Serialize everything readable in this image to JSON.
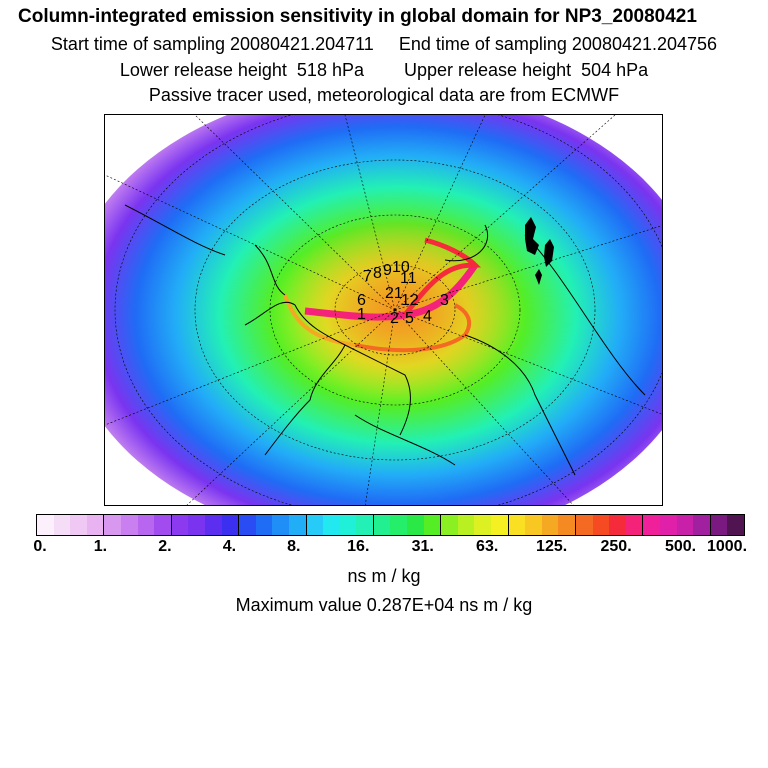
{
  "header": {
    "title": "Column-integrated emission sensitivity in global domain for NP3_20080421",
    "start_label": "Start time of sampling 20080421.204711",
    "end_label": "End time of sampling 20080421.204756",
    "lower_label": "Lower release height  518 hPa",
    "upper_label": "Upper release height  504 hPa",
    "tracer_note": "Passive tracer used, meteorological data are from ECMWF"
  },
  "colorbar": {
    "colors": [
      "#fbf0fb",
      "#f5dcf7",
      "#efc8f3",
      "#e8b3f0",
      "#d998ef",
      "#c97ff0",
      "#b865ef",
      "#a24cef",
      "#8b3af0",
      "#7a34f0",
      "#5c2ff0",
      "#3b2ff0",
      "#2a4cf5",
      "#1f6cf5",
      "#1f8ef7",
      "#22adf7",
      "#26cbf7",
      "#22e8f0",
      "#20f0d8",
      "#22f0b5",
      "#22f090",
      "#24ee6a",
      "#2ae845",
      "#55ee25",
      "#8af022",
      "#b8f022",
      "#dcf022",
      "#f5f022",
      "#fae022",
      "#f8c722",
      "#f5a822",
      "#f58922",
      "#f56a22",
      "#f54a22",
      "#f52a3a",
      "#f5227a",
      "#f0209a",
      "#e020a8",
      "#c820a8",
      "#a020a0",
      "#7a1a80",
      "#501550"
    ],
    "tick_labels": [
      "0.",
      "1.",
      "2.",
      "4.",
      "8.",
      "16.",
      "31.",
      "63.",
      "125.",
      "250.",
      "500.",
      "1000."
    ],
    "units": "ns m / kg",
    "max_value_label": "Maximum value  0.287E+04 ns m / kg"
  },
  "map": {
    "release_numbers": [
      "1",
      "2",
      "3",
      "4",
      "5",
      "6",
      "7",
      "8",
      "9",
      "10",
      "11",
      "12",
      "21"
    ]
  }
}
